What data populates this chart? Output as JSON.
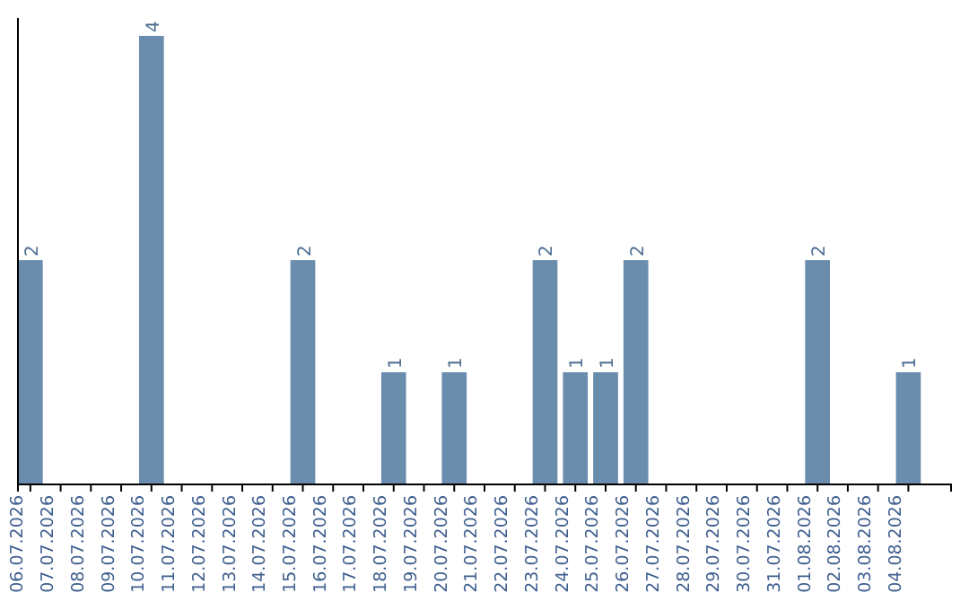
{
  "chart_data": {
    "type": "bar",
    "categories": [
      "06.07.2026",
      "07.07.2026",
      "08.07.2026",
      "09.07.2026",
      "10.07.2026",
      "11.07.2026",
      "12.07.2026",
      "13.07.2026",
      "14.07.2026",
      "15.07.2026",
      "16.07.2026",
      "17.07.2026",
      "18.07.2026",
      "19.07.2026",
      "20.07.2026",
      "21.07.2026",
      "22.07.2026",
      "23.07.2026",
      "24.07.2026",
      "25.07.2026",
      "26.07.2026",
      "27.07.2026",
      "28.07.2026",
      "29.07.2026",
      "30.07.2026",
      "31.07.2026",
      "01.08.2026",
      "02.08.2026",
      "03.08.2026",
      "04.08.2026"
    ],
    "values": [
      2,
      0,
      0,
      0,
      4,
      0,
      0,
      0,
      0,
      2,
      0,
      0,
      1,
      0,
      1,
      0,
      0,
      2,
      1,
      1,
      2,
      0,
      0,
      0,
      0,
      0,
      2,
      0,
      0,
      1
    ],
    "value_labels": [
      "2",
      null,
      null,
      null,
      "4",
      null,
      null,
      null,
      null,
      "2",
      null,
      null,
      "1",
      null,
      "1",
      null,
      null,
      "2",
      "1",
      "1",
      "2",
      null,
      null,
      null,
      null,
      null,
      "2",
      null,
      null,
      "1"
    ],
    "color": "#6a8cad",
    "tick_labels": "x"
  }
}
